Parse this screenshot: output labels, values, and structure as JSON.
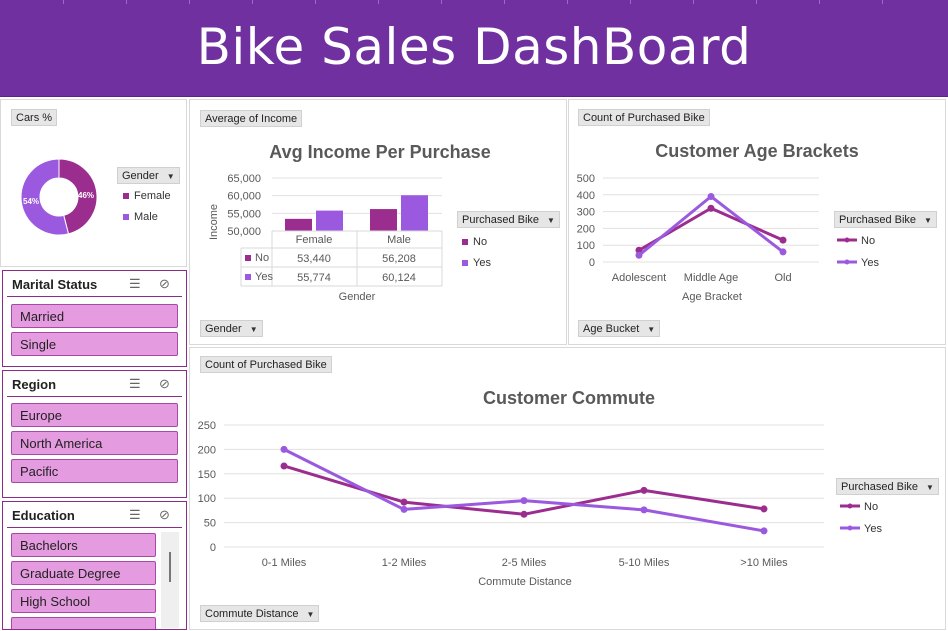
{
  "title": "Bike Sales DashBoard",
  "colors": {
    "brand": "#7030a0",
    "no": "#9b2d8f",
    "yes": "#9b59e0",
    "slicer_item": "#e59be0"
  },
  "pie": {
    "field_button": "Cars %",
    "legend_header": "Gender",
    "labels": [
      "Female",
      "Male"
    ],
    "values_text": [
      "46%",
      "54%"
    ],
    "values": [
      46,
      54
    ]
  },
  "income_chart": {
    "field_button": "Average of Income",
    "title": "Avg Income Per Purchase",
    "ylabel": "Income",
    "xlabel": "Gender",
    "legend_header": "Purchased Bike",
    "bottom_button": "Gender",
    "table": {
      "columns": [
        "Female",
        "Male"
      ],
      "rows": [
        {
          "label": "No",
          "values": [
            "53,440",
            "56,208"
          ]
        },
        {
          "label": "Yes",
          "values": [
            "55,774",
            "60,124"
          ]
        }
      ]
    }
  },
  "age_chart": {
    "field_button": "Count of Purchased Bike",
    "title": "Customer Age Brackets",
    "xlabel": "Age Bracket",
    "legend_header": "Purchased Bike",
    "bottom_button": "Age Bucket"
  },
  "commute_chart": {
    "field_button": "Count of Purchased Bike",
    "title": "Customer Commute",
    "xlabel": "Commute Distance",
    "legend_header": "Purchased Bike",
    "bottom_button": "Commute Distance"
  },
  "slicers": {
    "marital": {
      "title": "Marital Status",
      "items": [
        "Married",
        "Single"
      ]
    },
    "region": {
      "title": "Region",
      "items": [
        "Europe",
        "North America",
        "Pacific"
      ]
    },
    "education": {
      "title": "Education",
      "items": [
        "Bachelors",
        "Graduate Degree",
        "High School"
      ]
    }
  },
  "chart_data": [
    {
      "type": "bar",
      "categories": [
        "Female",
        "Male"
      ],
      "series": [
        {
          "name": "No",
          "values": [
            53440,
            56208
          ]
        },
        {
          "name": "Yes",
          "values": [
            55774,
            60124
          ]
        }
      ],
      "title": "Avg Income Per Purchase",
      "xlabel": "Gender",
      "ylabel": "Income",
      "ylim": [
        50000,
        65000
      ],
      "yticks": [
        "50,000",
        "55,000",
        "60,000",
        "65,000"
      ],
      "legend": "right"
    },
    {
      "type": "line",
      "categories": [
        "Adolescent",
        "Middle Age",
        "Old"
      ],
      "series": [
        {
          "name": "No",
          "values": [
            70,
            320,
            130
          ]
        },
        {
          "name": "Yes",
          "values": [
            40,
            390,
            60
          ]
        }
      ],
      "title": "Customer Age Brackets",
      "xlabel": "Age Bracket",
      "ylim": [
        0,
        500
      ],
      "yticks": [
        "0",
        "100",
        "200",
        "300",
        "400",
        "500"
      ],
      "legend": "right"
    },
    {
      "type": "line",
      "categories": [
        "0-1 Miles",
        "1-2 Miles",
        "2-5 Miles",
        "5-10 Miles",
        ">10 Miles"
      ],
      "series": [
        {
          "name": "No",
          "values": [
            166,
            92,
            67,
            116,
            78
          ]
        },
        {
          "name": "Yes",
          "values": [
            200,
            77,
            95,
            76,
            33
          ]
        }
      ],
      "title": "Customer Commute",
      "xlabel": "Commute Distance",
      "ylim": [
        0,
        250
      ],
      "yticks": [
        "0",
        "50",
        "100",
        "150",
        "200",
        "250"
      ],
      "legend": "right"
    }
  ]
}
